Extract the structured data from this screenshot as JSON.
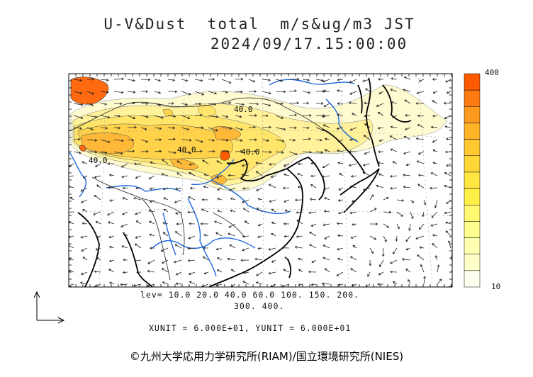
{
  "title_line1": "U-V&Dust  total  m/s&ug/m3 JST",
  "title_line2": "2024/09/17.15:00:00",
  "contour_levels_line1": "lev= 10.0 20.0 40.0 60.0 100. 150. 200.",
  "contour_levels_line2": "300. 400.",
  "unit_vectors": "XUNIT = 6.000E+01, YUNIT = 6.000E+01",
  "colorbar": {
    "max_label": "400",
    "min_label": "10",
    "colors": [
      "#ff5a00",
      "#ff7a10",
      "#ff9a20",
      "#ffb428",
      "#ffc830",
      "#ffd838",
      "#ffe640",
      "#fff048",
      "#fff870",
      "#ffff90",
      "#ffffb0",
      "#ffffc8",
      "#fffff0"
    ]
  },
  "contour_labels": [
    "40.0",
    "40.0",
    "40.0",
    "40.0"
  ],
  "copyright": "©九州大学応用力学研究所(RIAM)/国立環境研究所(NIES)",
  "colors": {
    "coast": "#000000",
    "river": "#1e66dd",
    "border": "#333333"
  }
}
